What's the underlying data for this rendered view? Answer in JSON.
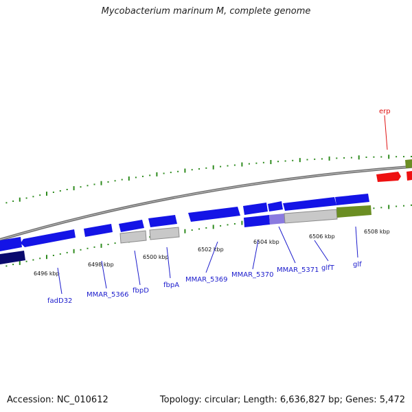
{
  "title": "Mycobacterium marinum M, complete genome",
  "footer": {
    "accession": "Accession: NC_010612",
    "stats": "Topology: circular; Length: 6,636,827 bp; Genes: 5,472"
  },
  "colors": {
    "axis": "#7a7a7a",
    "tick": "#2e8b1e",
    "gene_forward": "#1414e6",
    "gene_dark": "#0a0a6e",
    "gene_gray": "#c8c8c8",
    "gene_olive": "#6b8e23",
    "highlight": "#8a7ae0",
    "label_blue": "#1a1acc",
    "label_red": "#e01010"
  },
  "scale_labels": [
    "6496 kbp",
    "6498 kbp",
    "6500 kbp",
    "6502 kbp",
    "6504 kbp",
    "6506 kbp",
    "6508 kbp"
  ],
  "gene_labels": [
    {
      "text": "fadD32",
      "color": "blue"
    },
    {
      "text": "MMAR_5366",
      "color": "blue"
    },
    {
      "text": "fbpD",
      "color": "blue"
    },
    {
      "text": "fbpA",
      "color": "blue"
    },
    {
      "text": "MMAR_5369",
      "color": "blue"
    },
    {
      "text": "MMAR_5370",
      "color": "blue"
    },
    {
      "text": "MMAR_5371",
      "color": "blue"
    },
    {
      "text": "glfT",
      "color": "blue"
    },
    {
      "text": "glf",
      "color": "blue"
    },
    {
      "text": "erp",
      "color": "red"
    }
  ]
}
